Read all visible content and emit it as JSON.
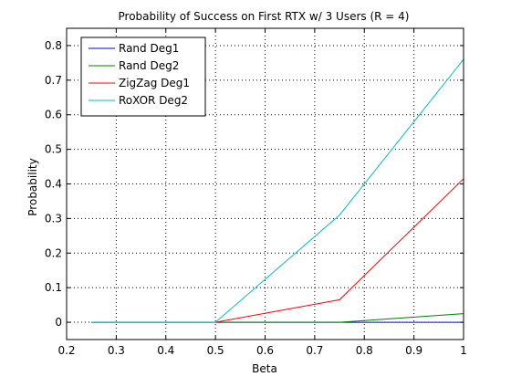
{
  "chart_data": {
    "type": "line",
    "title": "Probability of Success on First RTX w/ 3 Users (R = 4)",
    "xlabel": "Beta",
    "ylabel": "Probability",
    "xlim": [
      0.2,
      1.0
    ],
    "ylim": [
      -0.05,
      0.85
    ],
    "xticks": [
      0.2,
      0.3,
      0.4,
      0.5,
      0.6,
      0.7,
      0.8,
      0.9,
      1.0
    ],
    "xtick_labels": [
      "0.2",
      "0.3",
      "0.4",
      "0.5",
      "0.6",
      "0.7",
      "0.8",
      "0.9",
      "1"
    ],
    "yticks": [
      0,
      0.1,
      0.2,
      0.3,
      0.4,
      0.5,
      0.6,
      0.7,
      0.8
    ],
    "ytick_labels": [
      "0",
      "0.1",
      "0.2",
      "0.3",
      "0.4",
      "0.5",
      "0.6",
      "0.7",
      "0.8"
    ],
    "grid": true,
    "legend_position": "top-left",
    "series": [
      {
        "name": "Rand Deg1",
        "color": "#0000ff",
        "x": [
          0.25,
          0.5,
          0.75,
          1.0
        ],
        "y": [
          0,
          0,
          0,
          0
        ]
      },
      {
        "name": "Rand Deg2",
        "color": "#008000",
        "x": [
          0.25,
          0.5,
          0.75,
          1.0
        ],
        "y": [
          0,
          0,
          0,
          0.025
        ]
      },
      {
        "name": "ZigZag Deg1",
        "color": "#ff0000",
        "x": [
          0.5,
          0.75,
          1.0
        ],
        "y": [
          0,
          0.065,
          0.415
        ]
      },
      {
        "name": "RoXOR Deg2",
        "color": "#00bfbf",
        "x": [
          0.25,
          0.5,
          0.75,
          1.0
        ],
        "y": [
          0,
          0,
          0.31,
          0.76
        ]
      }
    ]
  }
}
